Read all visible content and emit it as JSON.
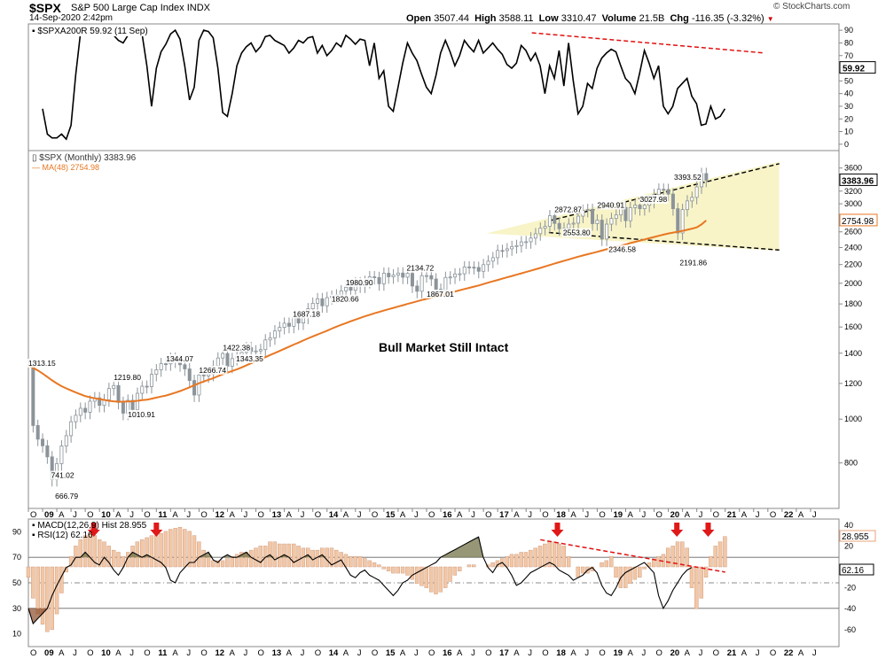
{
  "header": {
    "symbol": "$SPX",
    "name": "S&P 500 Large Cap Index",
    "exchange": "INDX",
    "date": "14-Sep-2020 2:42pm",
    "open_label": "Open",
    "open": "3507.44",
    "high_label": "High",
    "high": "3588.11",
    "low_label": "Low",
    "low": "3310.47",
    "volume_label": "Volume",
    "volume": "21.5B",
    "chg_label": "Chg",
    "chg": "-116.35 (-3.32%)",
    "chg_arrow": "▼",
    "credit": "© StockCharts.com"
  },
  "colors": {
    "price_line": "#000000",
    "ma_line": "#e87722",
    "resistance": "#e01010",
    "wedge_fill": "#f5f0b0",
    "candle": "#8c949a",
    "macd_hist": "#f2c7a6",
    "arrow": "#e01818",
    "rsi_fill": "#6b6b3e"
  },
  "chart_data": [
    {
      "id": "spxa200r",
      "type": "line",
      "title": "$SPXA200R 59.92 (11 Sep)",
      "legend_label": "$SPXA200R 59.92 (11 Sep)",
      "ylim": [
        -5,
        95
      ],
      "y_ticks": [
        "90",
        "80",
        "70",
        "60",
        "50",
        "40",
        "30",
        "20",
        "10",
        "0"
      ],
      "last_value": "59.92",
      "x_start": 2009.0,
      "x_step": 0.0833,
      "values": [
        28,
        8,
        5,
        5,
        8,
        4,
        15,
        55,
        88,
        89,
        86,
        90,
        91,
        89,
        91,
        86,
        82,
        80,
        86,
        90,
        91,
        87,
        62,
        30,
        60,
        73,
        79,
        87,
        90,
        83,
        62,
        35,
        45,
        82,
        90,
        89,
        84,
        60,
        25,
        22,
        40,
        62,
        72,
        77,
        80,
        73,
        77,
        85,
        86,
        82,
        80,
        78,
        72,
        76,
        82,
        80,
        84,
        85,
        72,
        78,
        70,
        74,
        80,
        77,
        86,
        83,
        79,
        83,
        82,
        62,
        80,
        52,
        58,
        30,
        26,
        45,
        64,
        80,
        72,
        66,
        55,
        45,
        40,
        54,
        72,
        82,
        73,
        62,
        70,
        82,
        77,
        73,
        82,
        72,
        76,
        80,
        75,
        71,
        63,
        60,
        64,
        78,
        74,
        66,
        72,
        62,
        40,
        62,
        52,
        74,
        46,
        80,
        50,
        24,
        30,
        48,
        44,
        60,
        68,
        72,
        75,
        73,
        62,
        52,
        48,
        40,
        56,
        74,
        64,
        52,
        62,
        30,
        24,
        30,
        44,
        48,
        52,
        38,
        32,
        15,
        16,
        30,
        20,
        22,
        28
      ],
      "resistance_label": "downtrend"
    },
    {
      "id": "price",
      "type": "candlestick",
      "title": "$SPX (Monthly) 3383.96",
      "ma_label": "MA(48) 2754.98",
      "last_value": "3383.96",
      "ma_last_value": "2754.98",
      "y_scale": "log",
      "ylim": [
        640,
        3900
      ],
      "y_ticks": [
        "3600",
        "3400",
        "3200",
        "3000",
        "2800",
        "2600",
        "2400",
        "2200",
        "2000",
        "1800",
        "1600",
        "1400",
        "1200",
        "1000",
        "800"
      ],
      "x_labels": [
        "O",
        "09",
        "A",
        "J",
        "O",
        "10",
        "A",
        "J",
        "O",
        "11",
        "A",
        "J",
        "O",
        "12",
        "A",
        "J",
        "O",
        "13",
        "A",
        "J",
        "O",
        "14",
        "A",
        "J",
        "O",
        "15",
        "A",
        "J",
        "O",
        "16",
        "A",
        "J",
        "O",
        "17",
        "A",
        "J",
        "O",
        "18",
        "A",
        "J",
        "O",
        "19",
        "A",
        "J",
        "O",
        "20",
        "A",
        "J",
        "O",
        "21",
        "A",
        "J",
        "O",
        "22",
        "A",
        "J"
      ],
      "x_start": 2008.75,
      "x_step": 0.25,
      "closes": [
        1313,
        968,
        903,
        873,
        825,
        735,
        797,
        872,
        919,
        987,
        1020,
        1057,
        1036,
        1096,
        1115,
        1073,
        1104,
        1169,
        1187,
        1089,
        1031,
        1101,
        1049,
        1141,
        1183,
        1181,
        1257,
        1286,
        1327,
        1326,
        1364,
        1345,
        1320,
        1292,
        1218,
        1131,
        1253,
        1247,
        1257,
        1312,
        1366,
        1398,
        1310,
        1362,
        1379,
        1406,
        1440,
        1412,
        1416,
        1426,
        1498,
        1514,
        1569,
        1597,
        1631,
        1606,
        1685,
        1633,
        1682,
        1756,
        1806,
        1848,
        1783,
        1859,
        1872,
        1884,
        1924,
        1960,
        1930,
        2003,
        1972,
        2018,
        2067,
        2059,
        1995,
        2105,
        2067,
        2086,
        2107,
        2063,
        2104,
        1972,
        1920,
        2079,
        2080,
        2044,
        1940,
        1932,
        2060,
        2065,
        2097,
        2099,
        2174,
        2171,
        2168,
        2126,
        2199,
        2239,
        2279,
        2364,
        2363,
        2384,
        2412,
        2424,
        2470,
        2472,
        2519,
        2575,
        2648,
        2674,
        2823,
        2714,
        2641,
        2648,
        2705,
        2718,
        2816,
        2901,
        2914,
        2711,
        2760,
        2506,
        2704,
        2784,
        2834,
        2946,
        2752,
        2942,
        2980,
        2926,
        2977,
        3037,
        3141,
        3231,
        3226,
        3153,
        2926,
        2585,
        2912,
        3044,
        3100,
        3271,
        3500,
        3384
      ],
      "ma_values": [
        1317,
        1300,
        1282,
        1262,
        1240,
        1219,
        1200,
        1183,
        1170,
        1158,
        1146,
        1135,
        1125,
        1118,
        1112,
        1108,
        1103,
        1098,
        1095,
        1093,
        1093,
        1094,
        1095,
        1098,
        1102,
        1104,
        1110,
        1116,
        1122,
        1128,
        1136,
        1145,
        1154,
        1165,
        1176,
        1189,
        1201,
        1212,
        1222,
        1233,
        1245,
        1257,
        1268,
        1279,
        1290,
        1302,
        1316,
        1330,
        1344,
        1358,
        1372,
        1387,
        1401,
        1416,
        1432,
        1447,
        1463,
        1478,
        1494,
        1510,
        1525,
        1540,
        1555,
        1570,
        1587,
        1603,
        1618,
        1632,
        1648,
        1662,
        1676,
        1690,
        1703,
        1716,
        1728,
        1740,
        1752,
        1764,
        1776,
        1788,
        1800,
        1812,
        1824,
        1836,
        1847,
        1858,
        1870,
        1882,
        1894,
        1906,
        1918,
        1930,
        1942,
        1954,
        1966,
        1978,
        1992,
        2006,
        2020,
        2034,
        2048,
        2062,
        2076,
        2090,
        2104,
        2118,
        2133,
        2148,
        2163,
        2179,
        2195,
        2211,
        2227,
        2243,
        2259,
        2275,
        2290,
        2305,
        2320,
        2333,
        2348,
        2363,
        2379,
        2394,
        2409,
        2424,
        2439,
        2455,
        2470,
        2486,
        2501,
        2517,
        2532,
        2548,
        2563,
        2578,
        2590,
        2600,
        2614,
        2628,
        2643,
        2660,
        2700,
        2755
      ],
      "annotations": [
        {
          "label": "1313.15",
          "x": 2008.75,
          "y": 1313
        },
        {
          "label": "741.02",
          "x": 2009.15,
          "y": 741
        },
        {
          "label": "666.79",
          "x": 2009.22,
          "y": 667
        },
        {
          "label": "1219.80",
          "x": 2010.25,
          "y": 1220
        },
        {
          "label": "1010.91",
          "x": 2010.5,
          "y": 1011
        },
        {
          "label": "1344.07",
          "x": 2011.17,
          "y": 1344
        },
        {
          "label": "1266.74",
          "x": 2011.75,
          "y": 1267
        },
        {
          "label": "1422.38",
          "x": 2012.17,
          "y": 1422
        },
        {
          "label": "1343.35",
          "x": 2012.4,
          "y": 1343
        },
        {
          "label": "1687.18",
          "x": 2013.4,
          "y": 1687
        },
        {
          "label": "1820.66",
          "x": 2014.08,
          "y": 1821
        },
        {
          "label": "1980.90",
          "x": 2014.33,
          "y": 1981
        },
        {
          "label": "2134.72",
          "x": 2015.4,
          "y": 2135
        },
        {
          "label": "1867.01",
          "x": 2015.75,
          "y": 1867
        },
        {
          "label": "2872.87",
          "x": 2018.0,
          "y": 2873
        },
        {
          "label": "2553.80",
          "x": 2018.15,
          "y": 2554
        },
        {
          "label": "2940.91",
          "x": 2018.75,
          "y": 2941
        },
        {
          "label": "2346.58",
          "x": 2018.95,
          "y": 2347
        },
        {
          "label": "3027.98",
          "x": 2019.5,
          "y": 3028
        },
        {
          "label": "3393.52",
          "x": 2020.1,
          "y": 3394
        },
        {
          "label": "2191.86",
          "x": 2020.2,
          "y": 2192
        }
      ],
      "text_annotation": "Bull Market Still Intact"
    },
    {
      "id": "macd_rsi",
      "type": "line",
      "title": "MACD(12,26,9) Hist 28.955",
      "rsi_label": "RSI(12) 62.16",
      "left_ticks": [
        "90",
        "70",
        "50",
        "30",
        "10"
      ],
      "right_ticks": [
        "40",
        "20",
        "-20",
        "-40",
        "-60"
      ],
      "macd_last": "28.955",
      "rsi_last": "62.16",
      "x_labels": [
        "O",
        "09",
        "A",
        "J",
        "O",
        "10",
        "A",
        "J",
        "O",
        "11",
        "A",
        "J",
        "O",
        "12",
        "A",
        "J",
        "O",
        "13",
        "A",
        "J",
        "O",
        "14",
        "A",
        "J",
        "O",
        "15",
        "A",
        "J",
        "O",
        "16",
        "A",
        "J",
        "O",
        "17",
        "A",
        "J",
        "O",
        "18",
        "A",
        "J",
        "O",
        "19",
        "A",
        "J",
        "O",
        "20",
        "A",
        "J",
        "O",
        "21",
        "A",
        "J",
        "O",
        "22",
        "A",
        "J"
      ],
      "x_start": 2008.75,
      "x_step": 0.0833,
      "macd_hist": [
        -10,
        -30,
        -45,
        -55,
        -62,
        -60,
        -45,
        -25,
        -5,
        10,
        20,
        26,
        30,
        32,
        30,
        26,
        24,
        20,
        16,
        14,
        10,
        14,
        20,
        24,
        26,
        28,
        30,
        30,
        32,
        34,
        36,
        37,
        38,
        36,
        34,
        30,
        24,
        16,
        10,
        6,
        6,
        6,
        8,
        10,
        12,
        14,
        14,
        16,
        18,
        20,
        20,
        24,
        24,
        22,
        22,
        22,
        22,
        20,
        18,
        18,
        16,
        16,
        18,
        18,
        18,
        16,
        14,
        12,
        10,
        10,
        10,
        8,
        6,
        4,
        2,
        -2,
        -4,
        -6,
        -6,
        -6,
        -8,
        -12,
        -16,
        -18,
        -20,
        -24,
        -26,
        -24,
        -20,
        -14,
        -8,
        -4,
        0,
        2,
        2,
        0,
        0,
        2,
        4,
        6,
        8,
        10,
        12,
        12,
        14,
        14,
        16,
        18,
        20,
        22,
        24,
        24,
        22,
        20,
        10,
        0,
        -10,
        -6,
        -6,
        -4,
        0,
        4,
        6,
        10,
        -10,
        -20,
        -20,
        -16,
        -12,
        -10,
        -2,
        4,
        8,
        10,
        12,
        18,
        20,
        24,
        24,
        18,
        -20,
        -40,
        -30,
        -10,
        10,
        20,
        24,
        29
      ],
      "rsi": [
        30,
        18,
        22,
        26,
        30,
        40,
        48,
        55,
        62,
        64,
        70,
        70,
        74,
        70,
        66,
        64,
        70,
        66,
        60,
        56,
        62,
        70,
        74,
        72,
        70,
        72,
        70,
        68,
        66,
        62,
        52,
        50,
        58,
        62,
        66,
        66,
        70,
        72,
        74,
        68,
        66,
        70,
        72,
        70,
        70,
        72,
        74,
        70,
        68,
        66,
        70,
        72,
        68,
        70,
        72,
        70,
        66,
        68,
        70,
        72,
        68,
        70,
        72,
        68,
        64,
        66,
        68,
        62,
        56,
        54,
        58,
        60,
        56,
        54,
        52,
        48,
        44,
        40,
        44,
        50,
        52,
        56,
        58,
        60,
        62,
        64,
        66,
        70,
        72,
        74,
        76,
        78,
        80,
        82,
        84,
        86,
        70,
        62,
        58,
        64,
        66,
        62,
        56,
        48,
        50,
        54,
        58,
        60,
        62,
        64,
        66,
        64,
        60,
        58,
        56,
        52,
        54,
        56,
        60,
        62,
        58,
        48,
        42,
        40,
        46,
        54,
        58,
        60,
        62,
        64,
        66,
        62,
        58,
        40,
        30,
        36,
        44,
        50,
        56,
        60,
        62
      ],
      "arrows_count": 5
    }
  ]
}
